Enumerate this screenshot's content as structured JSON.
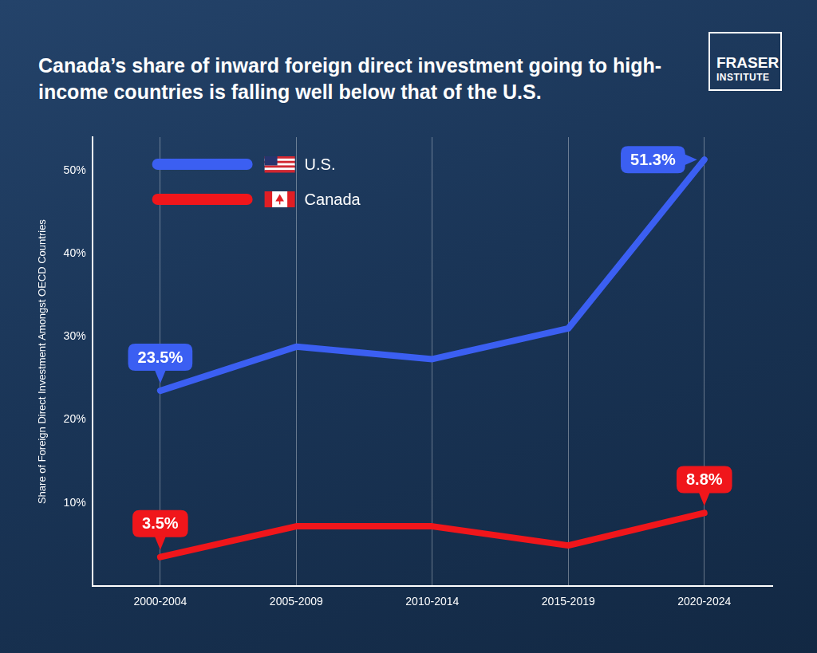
{
  "chart_data": {
    "type": "line",
    "title": "Canada’s share of inward foreign direct investment going to high-income countries is falling well below that of the U.S.",
    "logo": [
      "FRASER",
      "INSTITUTE"
    ],
    "y_label": "Share of Foreign Direct Investment Amongst OECD Countries",
    "categories": [
      "2000-2004",
      "2005-2009",
      "2010-2014",
      "2015-2019",
      "2020-2024"
    ],
    "series": [
      {
        "name": "U.S.",
        "color": "#3b5ff2",
        "values": [
          23.5,
          28.8,
          27.3,
          31.0,
          51.3
        ],
        "value_labels": [
          "23.5%",
          null,
          null,
          null,
          "51.3%"
        ]
      },
      {
        "name": "Canada",
        "color": "#f0161b",
        "values": [
          3.5,
          7.2,
          7.2,
          4.9,
          8.8
        ],
        "value_labels": [
          "3.5%",
          null,
          null,
          null,
          "8.8%"
        ]
      }
    ],
    "ylim": [
      0,
      54
    ],
    "yticks": [
      {
        "value": 10,
        "label": "10%"
      },
      {
        "value": 20,
        "label": "20%"
      },
      {
        "value": 30,
        "label": "30%"
      },
      {
        "value": 40,
        "label": "40%"
      },
      {
        "value": 50,
        "label": "50%"
      }
    ],
    "grid": "x",
    "legend": "top-left",
    "data_labels": true
  }
}
